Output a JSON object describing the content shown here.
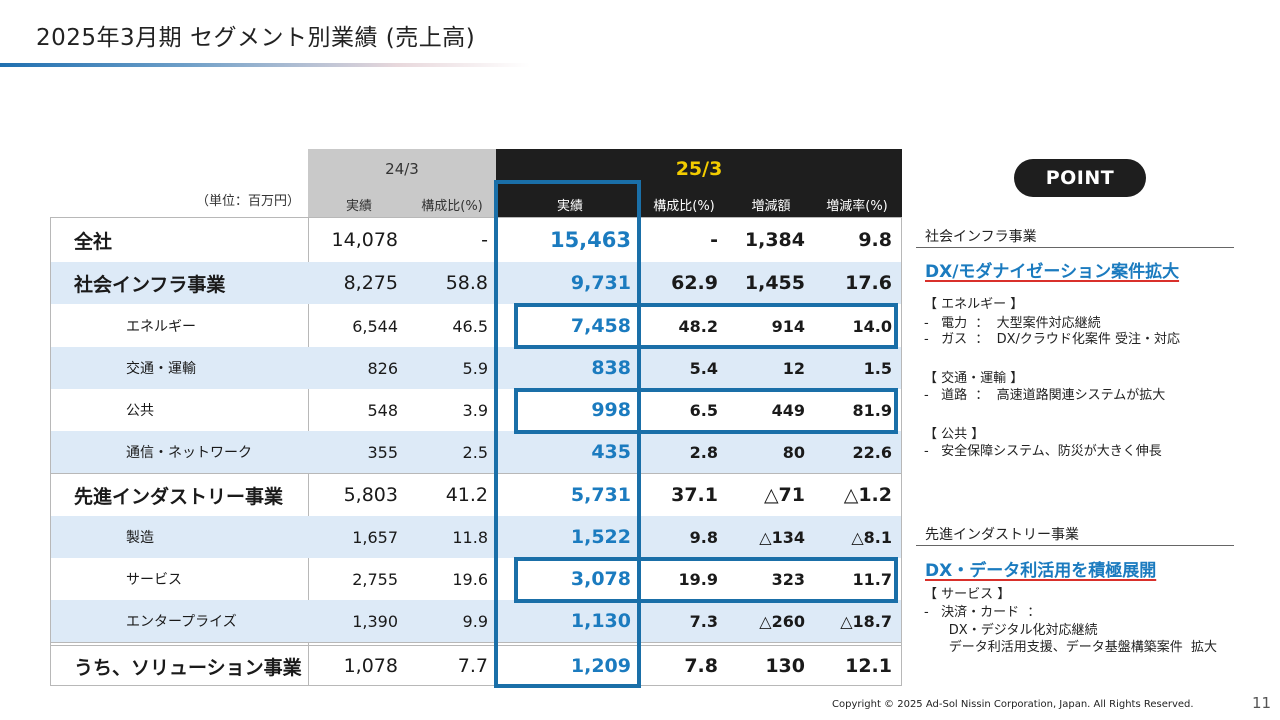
{
  "title": "2025年3月期 セグメント別業績 (売上高)",
  "unit_label": "（単位：百万円）",
  "header": {
    "prev_period": "24/3",
    "curr_period": "25/3",
    "prev_cols": [
      "実績",
      "構成比(%)"
    ],
    "curr_cols": [
      "実績",
      "構成比(%)",
      "増減額",
      "増減率(%)"
    ]
  },
  "rows": [
    {
      "label": "全社",
      "prev_actual": "14,078",
      "prev_ratio": "-",
      "curr_actual": "15,463",
      "curr_ratio": "-",
      "change": "1,384",
      "change_rate": "9.8"
    },
    {
      "label": "社会インフラ事業",
      "prev_actual": "8,275",
      "prev_ratio": "58.8",
      "curr_actual": "9,731",
      "curr_ratio": "62.9",
      "change": "1,455",
      "change_rate": "17.6"
    },
    {
      "label": "エネルギー",
      "prev_actual": "6,544",
      "prev_ratio": "46.5",
      "curr_actual": "7,458",
      "curr_ratio": "48.2",
      "change": "914",
      "change_rate": "14.0"
    },
    {
      "label": "交通・運輸",
      "prev_actual": "826",
      "prev_ratio": "5.9",
      "curr_actual": "838",
      "curr_ratio": "5.4",
      "change": "12",
      "change_rate": "1.5"
    },
    {
      "label": "公共",
      "prev_actual": "548",
      "prev_ratio": "3.9",
      "curr_actual": "998",
      "curr_ratio": "6.5",
      "change": "449",
      "change_rate": "81.9"
    },
    {
      "label": "通信・ネットワーク",
      "prev_actual": "355",
      "prev_ratio": "2.5",
      "curr_actual": "435",
      "curr_ratio": "2.8",
      "change": "80",
      "change_rate": "22.6"
    },
    {
      "label": "先進インダストリー事業",
      "prev_actual": "5,803",
      "prev_ratio": "41.2",
      "curr_actual": "5,731",
      "curr_ratio": "37.1",
      "change": "△71",
      "change_rate": "△1.2"
    },
    {
      "label": "製造",
      "prev_actual": "1,657",
      "prev_ratio": "11.8",
      "curr_actual": "1,522",
      "curr_ratio": "9.8",
      "change": "△134",
      "change_rate": "△8.1"
    },
    {
      "label": "サービス",
      "prev_actual": "2,755",
      "prev_ratio": "19.6",
      "curr_actual": "3,078",
      "curr_ratio": "19.9",
      "change": "323",
      "change_rate": "11.7"
    },
    {
      "label": "エンタープライズ",
      "prev_actual": "1,390",
      "prev_ratio": "9.9",
      "curr_actual": "1,130",
      "curr_ratio": "7.3",
      "change": "△260",
      "change_rate": "△18.7"
    },
    {
      "label": "うち、ソリューション事業",
      "prev_actual": "1,078",
      "prev_ratio": "7.7",
      "curr_actual": "1,209",
      "curr_ratio": "7.8",
      "change": "130",
      "change_rate": "12.1"
    }
  ],
  "point": {
    "badge": "POINT",
    "infra": {
      "section": "社会インフラ事業",
      "headline": "DX/モダナイゼーション案件拡大",
      "energy_title": "【 エネルギー 】",
      "energy_1": "-   電力  ：  大型案件対応継続",
      "energy_2": "-   ガス  ：  DX/クラウド化案件 受注・対応",
      "transport_title": "【 交通・運輸 】",
      "transport_1": "-   道路  ：  高速道路関連システムが拡大",
      "public_title": "【 公共 】",
      "public_1": "-   安全保障システム、防災が大きく伸長"
    },
    "industry": {
      "section": "先進インダストリー事業",
      "headline": "DX・データ利活用を積極展開",
      "service_title": "【 サービス 】",
      "service_1": "-   決済・カード  ：",
      "service_2": "      DX・デジタル化対応継続",
      "service_3": "      データ利活用支援、データ基盤構築案件  拡大"
    }
  },
  "footer": "Copyright © 2025 Ad-Sol Nissin Corporation, Japan. All Rights Reserved.",
  "page_number": "11"
}
